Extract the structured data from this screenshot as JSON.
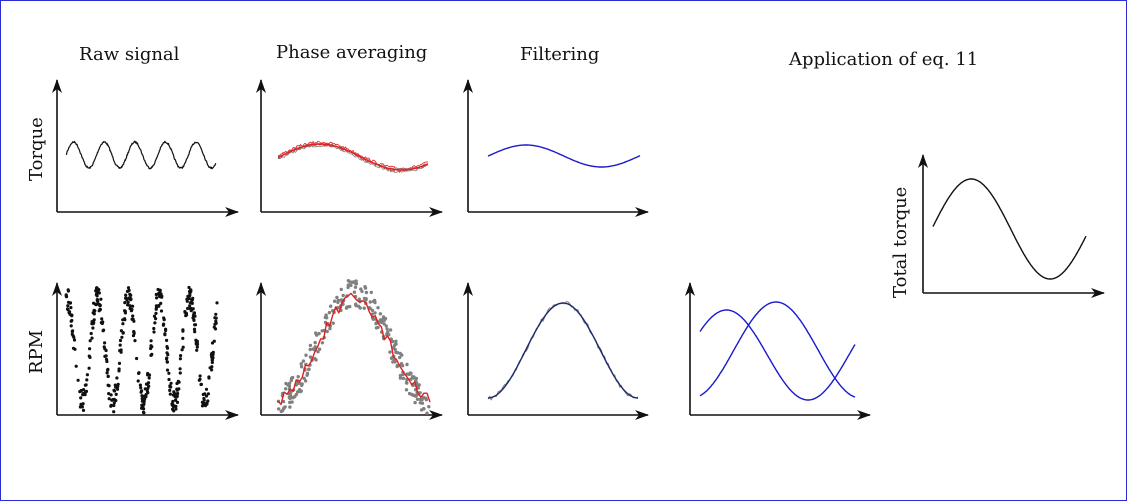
{
  "headings": {
    "raw": "Raw signal",
    "phase": "Phase averaging",
    "filter": "Filtering",
    "application": "Application of  eq. 11"
  },
  "axis_labels": {
    "torque": "Torque",
    "rpm": "RPM",
    "total": "Total torque"
  },
  "colors": {
    "frame": "#2b2bd6",
    "black": "#111111",
    "red": "#e02020",
    "blue": "#1a1acc",
    "gray": "#808080"
  }
}
